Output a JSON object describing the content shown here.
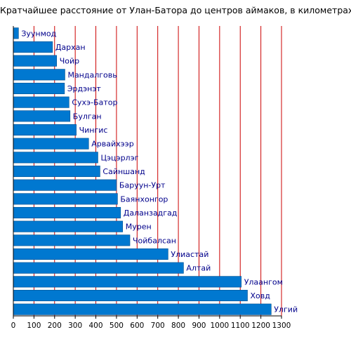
{
  "chart_data": {
    "type": "bar",
    "orientation": "horizontal",
    "title": "Кратчайшее расстояние от Улан-Батора до центров аймаков, в километрах",
    "categories": [
      "Зуунмод",
      "Дархан",
      "Чойр",
      "Мандалговь",
      "Эрдэнэт",
      "Сухэ-Батор",
      "Булган",
      "Чингис",
      "Арвайхээр",
      "Цэцэрлэг",
      "Сайншанд",
      "Баруун-Урт",
      "Баянхонгор",
      "Даланзадгад",
      "Мурен",
      "Чойбалсан",
      "Улиастай",
      "Алтай",
      "Улаангом",
      "Ховд",
      "Улгий"
    ],
    "values": [
      25,
      190,
      210,
      250,
      248,
      270,
      275,
      305,
      365,
      410,
      420,
      500,
      505,
      520,
      530,
      565,
      750,
      825,
      1105,
      1135,
      1250
    ],
    "xlim": [
      0,
      1300
    ],
    "xticks": [
      "0",
      "100",
      "200",
      "300",
      "400",
      "500",
      "600",
      "700",
      "800",
      "900",
      "1000",
      "1100",
      "1200",
      "1300"
    ],
    "grid": true,
    "colors": {
      "bar": "#0078d0",
      "bar_border": "#004f8f",
      "grid": "#cc0000",
      "label": "#00008b"
    }
  }
}
